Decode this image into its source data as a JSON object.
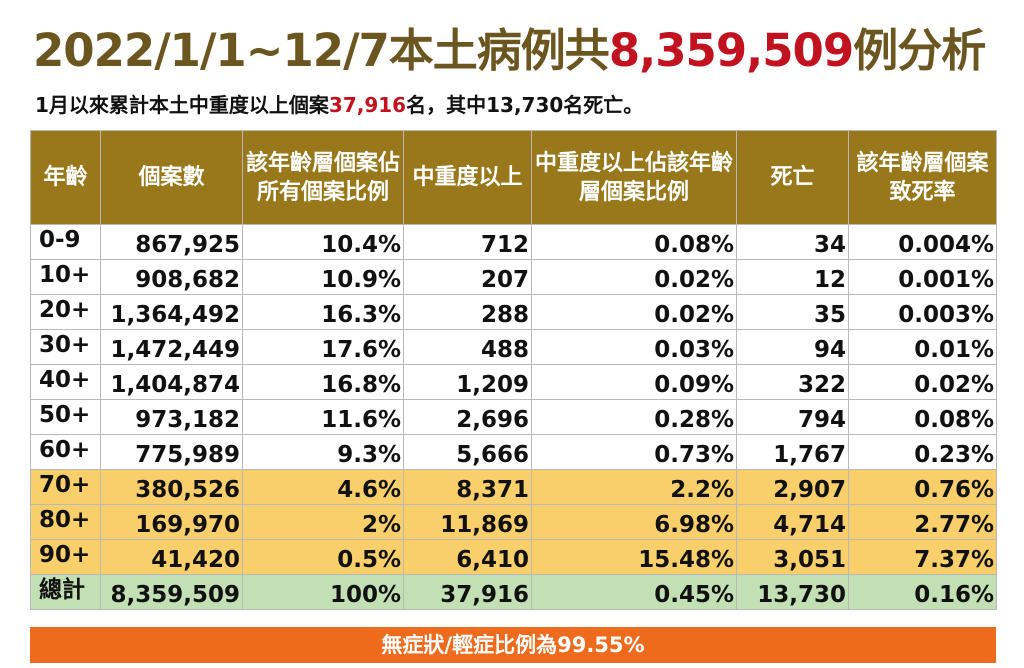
{
  "title": {
    "prefix": "2022/1/1~12/7本土病例共",
    "highlight": "8,359,509",
    "suffix": "例分析"
  },
  "subtitle": {
    "prefix": "1月以來累計本土中重度以上個案",
    "highlight": "37,916",
    "suffix": "名，其中13,730名死亡。"
  },
  "table": {
    "headers": [
      "年齡",
      "個案數",
      "該年齡層個案佔所有個案比例",
      "中重度以上",
      "中重度以上佔該年齡層個案比例",
      "死亡",
      "該年齡層個案致死率"
    ],
    "rows": [
      [
        "0-9",
        "867,925",
        "10.4%",
        "712",
        "0.08%",
        "34",
        "0.004%"
      ],
      [
        "10+",
        "908,682",
        "10.9%",
        "207",
        "0.02%",
        "12",
        "0.001%"
      ],
      [
        "20+",
        "1,364,492",
        "16.3%",
        "288",
        "0.02%",
        "35",
        "0.003%"
      ],
      [
        "30+",
        "1,472,449",
        "17.6%",
        "488",
        "0.03%",
        "94",
        "0.01%"
      ],
      [
        "40+",
        "1,404,874",
        "16.8%",
        "1,209",
        "0.09%",
        "322",
        "0.02%"
      ],
      [
        "50+",
        "973,182",
        "11.6%",
        "2,696",
        "0.28%",
        "794",
        "0.08%"
      ],
      [
        "60+",
        "775,989",
        "9.3%",
        "5,666",
        "0.73%",
        "1,767",
        "0.23%"
      ],
      [
        "70+",
        "380,526",
        "4.6%",
        "8,371",
        "2.2%",
        "2,907",
        "0.76%"
      ],
      [
        "80+",
        "169,970",
        "2%",
        "11,869",
        "6.98%",
        "4,714",
        "2.77%"
      ],
      [
        "90+",
        "41,420",
        "0.5%",
        "6,410",
        "15.48%",
        "3,051",
        "7.37%"
      ]
    ],
    "total": [
      "總計",
      "8,359,509",
      "100%",
      "37,916",
      "0.45%",
      "13,730",
      "0.16%"
    ]
  },
  "footer": "無症狀/輕症比例為99.55%",
  "colors": {
    "title_brown": "#6b5620",
    "highlight_red": "#c2121f",
    "header_bg": "#98781a",
    "elderly_rows_bg": "#f8cf6a",
    "total_row_bg": "#c3e0b4",
    "footer_bg": "#ee6a1c"
  }
}
